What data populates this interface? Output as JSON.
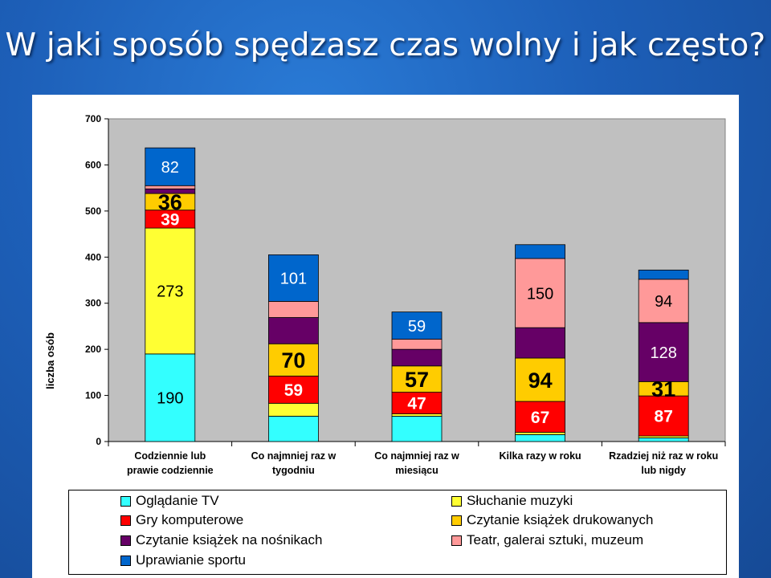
{
  "slide": {
    "title": "W jaki sposób spędzasz czas wolny i jak często?"
  },
  "chart_data": {
    "type": "bar",
    "stacked": true,
    "categories": [
      [
        "Codziennie lub",
        "prawie codziennie"
      ],
      [
        "Co najmniej raz w",
        "tygodniu"
      ],
      [
        "Co najmniej raz w",
        "miesiącu"
      ],
      [
        "Kilka razy w roku"
      ],
      [
        "Rzadziej niż raz w roku",
        "lub nigdy"
      ]
    ],
    "ylabel": "liczba osób",
    "ylim": [
      0,
      700
    ],
    "yticks": [
      0,
      100,
      200,
      300,
      400,
      500,
      600,
      700
    ],
    "grid": false,
    "legend_position": "bottom",
    "series": [
      {
        "name": "Oglądanie TV",
        "color": "#33FFFF",
        "values": [
          190,
          55,
          55,
          15,
          8
        ]
      },
      {
        "name": "Słuchanie muzyki",
        "color": "#FFFF33",
        "values": [
          273,
          28,
          5,
          5,
          4
        ]
      },
      {
        "name": "Gry komputerowe",
        "color": "#FF0000",
        "values": [
          39,
          59,
          47,
          67,
          87
        ]
      },
      {
        "name": "Czytanie książek drukowanych",
        "color": "#FFCC00",
        "values": [
          36,
          70,
          57,
          94,
          31
        ]
      },
      {
        "name": "Czytanie książek na nośnikach",
        "color": "#660066",
        "values": [
          10,
          57,
          36,
          66,
          128
        ]
      },
      {
        "name": "Teatr, galerai sztuki, muzeum",
        "color": "#FF9999",
        "values": [
          7,
          35,
          22,
          150,
          94
        ]
      },
      {
        "name": "Uprawianie sportu",
        "color": "#0066CC",
        "values": [
          82,
          101,
          59,
          30,
          20
        ]
      }
    ],
    "data_labels": [
      {
        "category": 0,
        "series": 0,
        "text": "190",
        "style": "plain"
      },
      {
        "category": 0,
        "series": 1,
        "text": "273",
        "style": "plain"
      },
      {
        "category": 0,
        "series": 2,
        "text": "39",
        "style": "bold-white"
      },
      {
        "category": 0,
        "series": 3,
        "text": "36",
        "style": "bold-black"
      },
      {
        "category": 0,
        "series": 6,
        "text": "82",
        "style": "plain-white"
      },
      {
        "category": 1,
        "series": 2,
        "text": "59",
        "style": "bold-white"
      },
      {
        "category": 1,
        "series": 3,
        "text": "70",
        "style": "bold-black"
      },
      {
        "category": 1,
        "series": 6,
        "text": "101",
        "style": "plain-white"
      },
      {
        "category": 2,
        "series": 2,
        "text": "47",
        "style": "bold-white"
      },
      {
        "category": 2,
        "series": 3,
        "text": "57",
        "style": "bold-black"
      },
      {
        "category": 2,
        "series": 6,
        "text": "59",
        "style": "plain-white"
      },
      {
        "category": 3,
        "series": 2,
        "text": "67",
        "style": "bold-white"
      },
      {
        "category": 3,
        "series": 3,
        "text": "94",
        "style": "bold-black"
      },
      {
        "category": 3,
        "series": 5,
        "text": "150",
        "style": "plain"
      },
      {
        "category": 4,
        "series": 2,
        "text": "87",
        "style": "bold-white"
      },
      {
        "category": 4,
        "series": 3,
        "text": "31",
        "style": "bold-black"
      },
      {
        "category": 4,
        "series": 4,
        "text": "128",
        "style": "plain-white"
      },
      {
        "category": 4,
        "series": 5,
        "text": "94",
        "style": "plain"
      }
    ]
  }
}
